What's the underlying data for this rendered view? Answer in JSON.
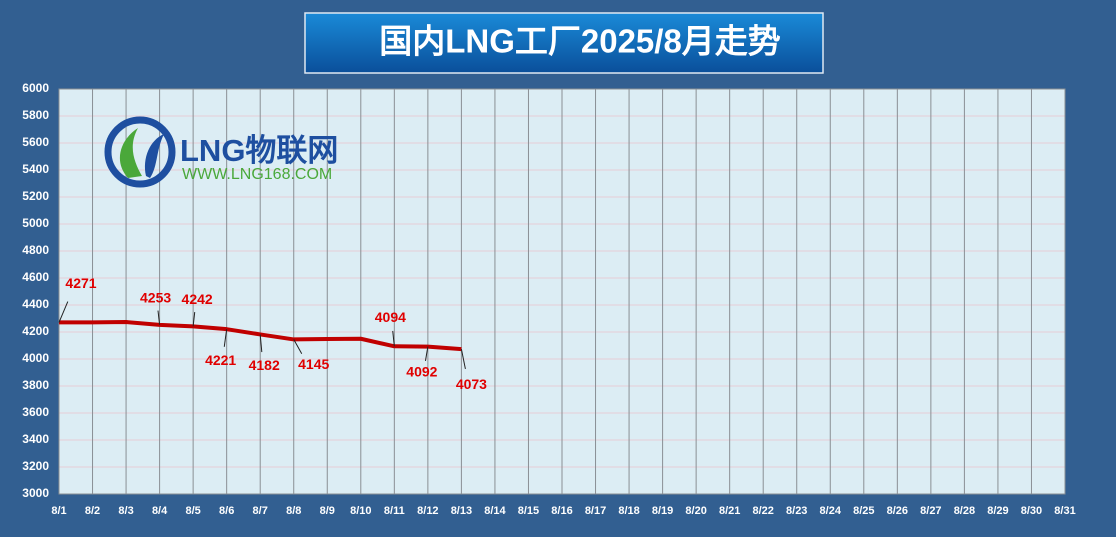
{
  "chart_data": {
    "type": "line",
    "title": "国内LNG工厂2025/8月走势",
    "categories": [
      "8/1",
      "8/2",
      "8/3",
      "8/4",
      "8/5",
      "8/6",
      "8/7",
      "8/8",
      "8/9",
      "8/10",
      "8/11",
      "8/12",
      "8/13",
      "8/14",
      "8/15",
      "8/16",
      "8/17",
      "8/18",
      "8/19",
      "8/20",
      "8/21",
      "8/22",
      "8/23",
      "8/24",
      "8/25",
      "8/26",
      "8/27",
      "8/28",
      "8/29",
      "8/30",
      "8/31"
    ],
    "series": [
      {
        "name": "LNG",
        "color": "#c00000",
        "values": [
          4271,
          4271,
          4274,
          4253,
          4242,
          4221,
          4182,
          4145,
          4148,
          4150,
          4094,
          4092,
          4073,
          null,
          null,
          null,
          null,
          null,
          null,
          null,
          null,
          null,
          null,
          null,
          null,
          null,
          null,
          null,
          null,
          null,
          null
        ],
        "value_labels": [
          "4271",
          null,
          null,
          "4253",
          "4242",
          "4221",
          "4182",
          "4145",
          null,
          null,
          "4094",
          "4092",
          "4073",
          null,
          null,
          null,
          null,
          null,
          null,
          null,
          null,
          null,
          null,
          null,
          null,
          null,
          null,
          null,
          null,
          null,
          null
        ]
      }
    ],
    "ylim": [
      3000,
      6000
    ],
    "yticks": [
      3000,
      3200,
      3400,
      3600,
      3800,
      4000,
      4200,
      4400,
      4600,
      4800,
      5000,
      5200,
      5400,
      5600,
      5800,
      6000
    ],
    "grid": true
  },
  "logo": {
    "name": "LNG物联网",
    "url": "WWW.LNG168.COM"
  }
}
